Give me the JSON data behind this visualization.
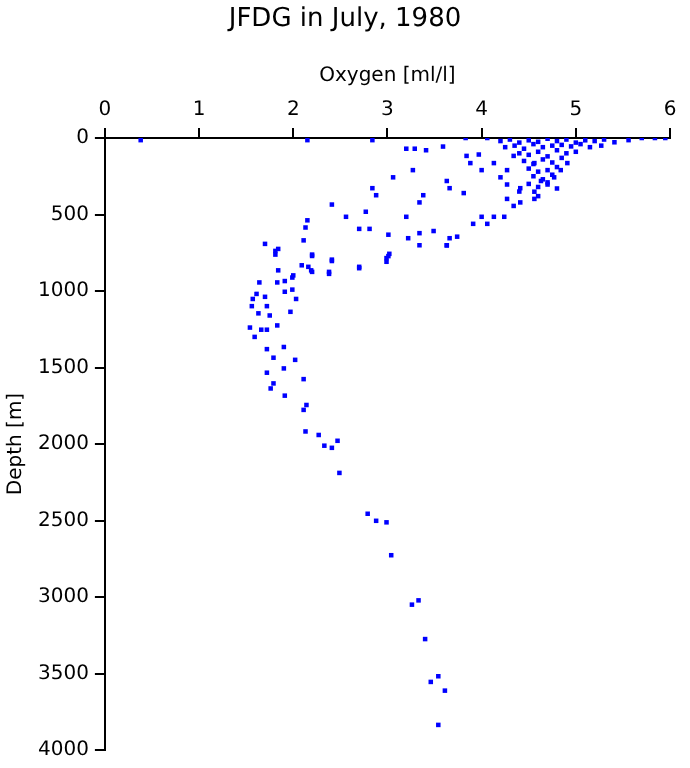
{
  "chart_data": {
    "type": "scatter",
    "title": "JFDG in July, 1980",
    "xlabel": "Oxygen [ml/l]",
    "ylabel": "Depth [m]",
    "xlim": [
      0,
      6
    ],
    "xticks": [
      0,
      1,
      2,
      3,
      4,
      5,
      6
    ],
    "ylim": [
      4000,
      0
    ],
    "yticks": [
      0,
      500,
      1000,
      1500,
      2000,
      2500,
      3000,
      3500,
      4000
    ],
    "grid": false,
    "legend": false,
    "marker": "square",
    "series": [
      {
        "color": "#0000ff",
        "x": [
          0.38,
          2.15,
          2.84,
          3.83,
          4.06,
          5.95,
          5.84,
          5.7,
          5.56,
          5.41,
          5.27,
          3.2,
          3.29,
          3.41,
          3.59,
          3.84,
          3.97,
          3.88,
          4.0,
          4.13,
          4.2,
          4.27,
          4.41,
          4.56,
          4.63,
          4.7,
          4.77,
          4.84,
          4.91,
          4.56,
          4.34,
          4.27,
          3.27,
          3.06,
          2.84,
          2.88,
          3.38,
          3.34,
          3.63,
          3.66,
          3.81,
          2.41,
          2.56,
          2.77,
          3.2,
          2.15,
          2.13,
          2.7,
          2.81,
          3.01,
          3.22,
          3.34,
          3.49,
          3.66,
          3.74,
          3.63,
          3.91,
          4.0,
          4.06,
          4.13,
          4.27,
          4.34,
          4.41,
          4.24,
          4.56,
          1.7,
          1.84,
          1.81,
          2.11,
          2.2,
          2.16,
          2.41,
          2.7,
          3.01,
          2.99,
          1.84,
          2.0,
          2.38,
          2.2,
          4.2,
          4.3,
          4.4,
          4.5,
          4.6,
          4.7,
          4.8,
          4.9,
          5.0,
          5.1,
          5.2,
          5.3,
          4.25,
          4.35,
          4.45,
          4.55,
          4.65,
          4.75,
          4.85,
          4.95,
          5.05,
          5.15,
          4.4,
          4.5,
          4.6,
          4.7,
          4.8,
          4.9,
          5.0,
          4.45,
          4.55,
          4.65,
          4.75,
          4.85,
          4.5,
          4.6,
          4.7,
          4.8,
          4.55,
          4.65,
          4.75,
          4.5,
          4.6,
          4.7,
          4.4,
          4.6,
          4.8,
          1.81,
          2.2,
          2.41,
          2.09,
          2.19,
          2.38,
          2.7,
          2.99,
          3.02,
          3.34,
          3.63,
          1.64,
          1.83,
          1.91,
          1.99,
          1.91,
          1.99,
          2.03,
          1.57,
          1.61,
          1.7,
          1.56,
          1.72,
          1.63,
          1.75,
          1.97,
          1.54,
          1.66,
          1.72,
          1.59,
          1.83,
          1.72,
          1.9,
          1.79,
          2.02,
          1.72,
          1.9,
          1.79,
          1.76,
          1.91,
          2.11,
          2.14,
          2.11,
          2.13,
          2.27,
          2.33,
          2.41,
          2.47,
          2.49,
          2.79,
          2.88,
          2.99,
          3.04,
          3.26,
          3.33,
          3.4,
          3.46,
          3.54,
          3.61,
          3.54
        ],
        "values": [
          14,
          14,
          14,
          0,
          0,
          0,
          0,
          0,
          14,
          28,
          50,
          70,
          70,
          80,
          56,
          117,
          108,
          164,
          210,
          164,
          257,
          304,
          328,
          351,
          281,
          304,
          257,
          210,
          164,
          164,
          117,
          210,
          210,
          257,
          328,
          374,
          374,
          421,
          281,
          328,
          360,
          435,
          515,
          482,
          515,
          538,
          585,
          594,
          594,
          632,
          655,
          622,
          608,
          655,
          645,
          702,
          561,
          515,
          561,
          515,
          398,
          444,
          421,
          515,
          398,
          692,
          725,
          762,
          669,
          762,
          842,
          795,
          842,
          772,
          809,
          865,
          898,
          875,
          875,
          20,
          10,
          30,
          15,
          25,
          5,
          20,
          10,
          30,
          15,
          20,
          10,
          60,
          50,
          70,
          40,
          60,
          50,
          45,
          55,
          40,
          60,
          100,
          110,
          90,
          120,
          80,
          100,
          90,
          150,
          170,
          140,
          160,
          130,
          200,
          220,
          210,
          190,
          250,
          270,
          240,
          300,
          320,
          290,
          350,
          380,
          330,
          738,
          771,
          804,
          832,
          865,
          888,
          851,
          785,
          757,
          701,
          701,
          944,
          944,
          935,
          912,
          1005,
          991,
          1052,
          1052,
          1019,
          1038,
          1099,
          1099,
          1146,
          1160,
          1136,
          1239,
          1253,
          1253,
          1300,
          1225,
          1380,
          1366,
          1436,
          1450,
          1534,
          1506,
          1604,
          1637,
          1684,
          1576,
          1745,
          1777,
          1918,
          1941,
          2011,
          2025,
          1979,
          2189,
          2456,
          2502,
          2512,
          2727,
          3050,
          3022,
          3275,
          3555,
          3518,
          3612,
          3836
        ]
      }
    ]
  }
}
